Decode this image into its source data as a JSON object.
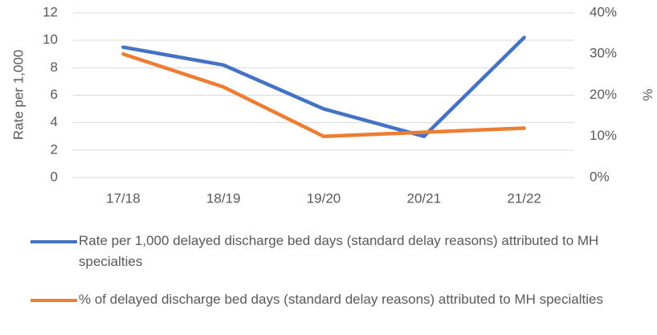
{
  "chart_data": {
    "type": "line",
    "categories": [
      "17/18",
      "18/19",
      "19/20",
      "20/21",
      "21/22"
    ],
    "series": [
      {
        "name": "Rate per 1,000 delayed discharge bed days (standard delay reasons) attributed to MH specialties",
        "color": "#4472c4",
        "values": [
          9.5,
          8.2,
          5.0,
          3.0,
          10.2
        ]
      },
      {
        "name": "% of delayed discharge bed days (standard delay reasons) attributed to MH specialties",
        "color": "#ed7d31",
        "axis": "y2",
        "values": [
          30,
          22,
          10,
          11,
          12
        ]
      }
    ],
    "ylabel": "Rate per 1,000",
    "y2label": "%",
    "ylim": [
      0,
      12
    ],
    "yticks": [
      0,
      2,
      4,
      6,
      8,
      10,
      12
    ],
    "y2lim": [
      0,
      40
    ],
    "y2ticks": [
      {
        "value": 0,
        "label": "0%"
      },
      {
        "value": 10,
        "label": "10%"
      },
      {
        "value": 20,
        "label": "20%"
      },
      {
        "value": 30,
        "label": "30%"
      },
      {
        "value": 40,
        "label": "40%"
      }
    ],
    "grid": true
  }
}
